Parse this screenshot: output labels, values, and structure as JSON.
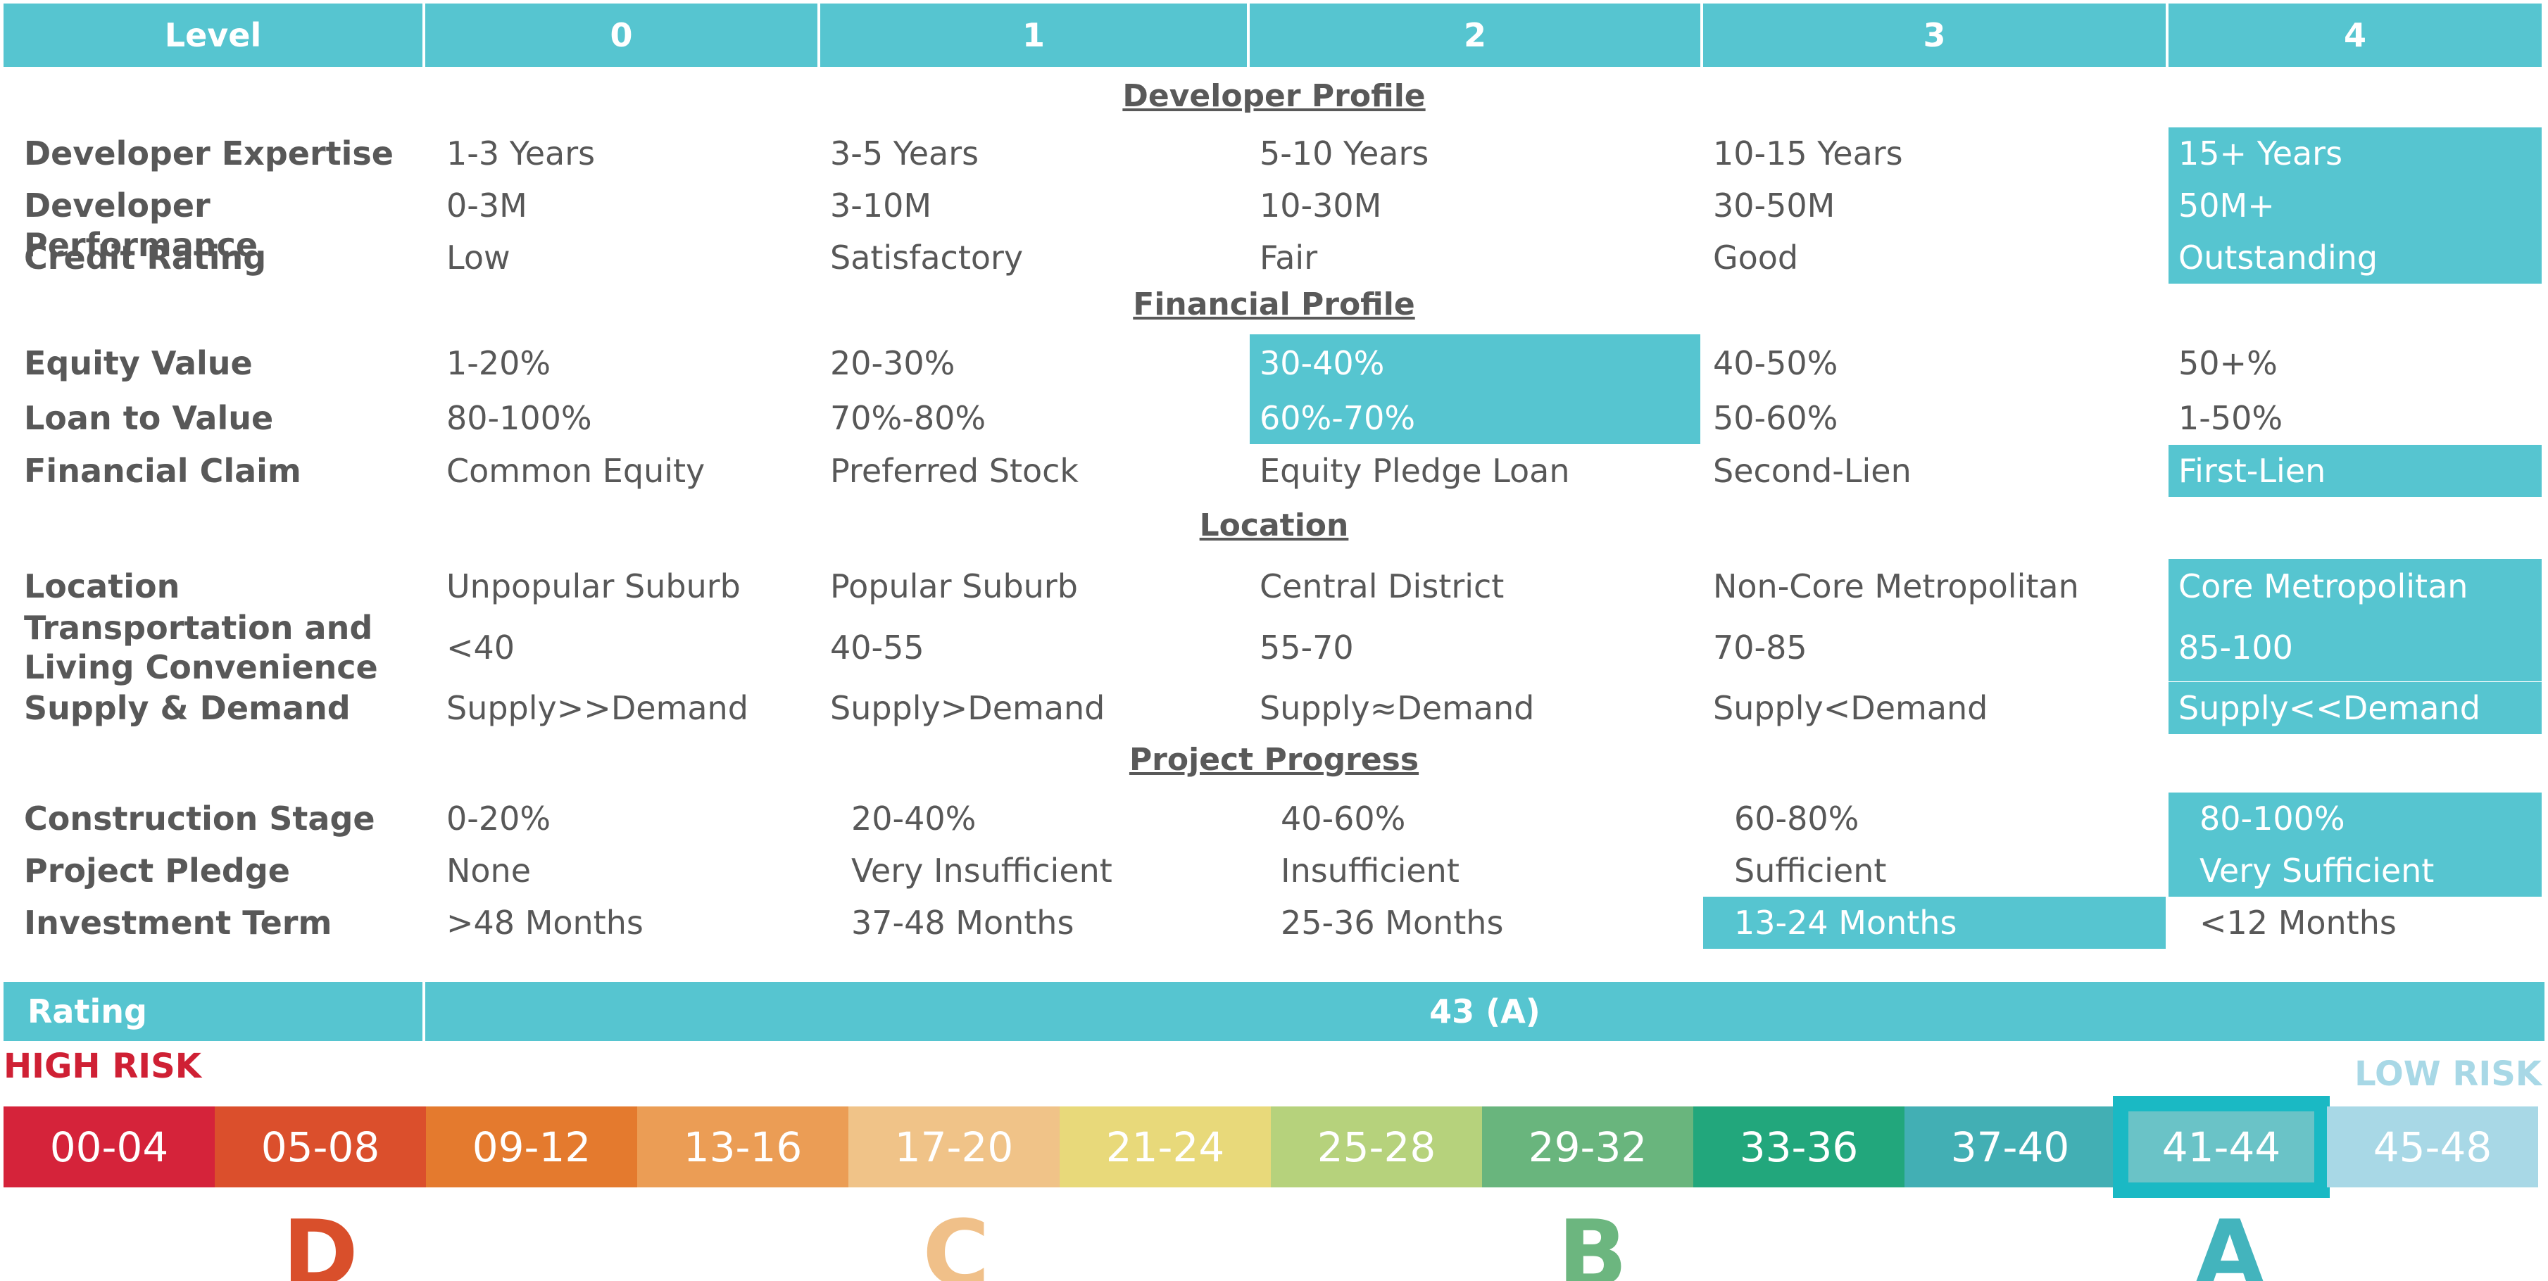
{
  "header": {
    "level_label": "Level",
    "levels": [
      "0",
      "1",
      "2",
      "3",
      "4"
    ]
  },
  "sections": [
    {
      "title": "Developer Profile",
      "rows": [
        {
          "label": "Developer Expertise",
          "values": [
            "1-3 Years",
            "3-5 Years",
            "5-10 Years",
            "10-15 Years",
            "15+ Years"
          ],
          "selected_level": 4
        },
        {
          "label": "Developer Performance",
          "values": [
            "0-3M",
            "3-10M",
            "10-30M",
            "30-50M",
            "50M+"
          ],
          "selected_level": 4
        },
        {
          "label": "Credit Rating",
          "values": [
            "Low",
            "Satisfactory",
            "Fair",
            "Good",
            "Outstanding"
          ],
          "selected_level": 4
        }
      ]
    },
    {
      "title": "Financial Profile",
      "rows": [
        {
          "label": "Equity Value",
          "values": [
            "1-20%",
            "20-30%",
            "30-40%",
            "40-50%",
            "50+%"
          ],
          "selected_level": 2
        },
        {
          "label": "Loan to Value",
          "values": [
            "80-100%",
            "70%-80%",
            "60%-70%",
            "50-60%",
            "1-50%"
          ],
          "selected_level": 2
        },
        {
          "label": "Financial Claim",
          "values": [
            "Common Equity",
            "Preferred Stock",
            "Equity Pledge Loan",
            "Second-Lien",
            "First-Lien"
          ],
          "selected_level": 4
        }
      ]
    },
    {
      "title": "Location",
      "rows": [
        {
          "label": "Location",
          "values": [
            "Unpopular Suburb",
            "Popular Suburb",
            "Central District",
            "Non-Core Metropolitan",
            "Core Metropolitan"
          ],
          "selected_level": 4
        },
        {
          "label": "Transportation and Living Convenience",
          "label_lines": [
            "Transportation and",
            "Living Convenience"
          ],
          "values": [
            "<40",
            "40-55",
            "55-70",
            "70-85",
            "85-100"
          ],
          "selected_level": 4
        },
        {
          "label": "Supply & Demand",
          "values": [
            "Supply>>Demand",
            "Supply>Demand",
            "Supply≈Demand",
            "Supply<Demand",
            "Supply<<Demand"
          ],
          "selected_level": 4
        }
      ]
    },
    {
      "title": "Project Progress",
      "rows": [
        {
          "label": "Construction Stage",
          "values": [
            "0-20%",
            "20-40%",
            "40-60%",
            "60-80%",
            "80-100%"
          ],
          "selected_level": 4
        },
        {
          "label": "Project Pledge",
          "values": [
            "None",
            "Very Insufficient",
            "Insufficient",
            "Sufficient",
            "Very Sufficient"
          ],
          "selected_level": 4
        },
        {
          "label": "Investment Term",
          "values": [
            ">48 Months",
            "37-48 Months",
            "25-36 Months",
            "13-24 Months",
            "<12 Months"
          ],
          "selected_level": 3
        }
      ]
    }
  ],
  "rating": {
    "label": "Rating",
    "value": "43 (A)"
  },
  "scale": {
    "high_risk_label": "HIGH RISK",
    "low_risk_label": "LOW RISK",
    "bands": [
      "00-04",
      "05-08",
      "09-12",
      "13-16",
      "17-20",
      "21-24",
      "25-28",
      "29-32",
      "33-36",
      "37-40",
      "41-44",
      "45-48"
    ],
    "band_colors": [
      "#d5233a",
      "#db4f2c",
      "#e47a2e",
      "#eb9d55",
      "#f0c388",
      "#e8d97a",
      "#b6d27c",
      "#69b57d",
      "#22a77c",
      "#42afb4",
      "#6ac3c7",
      "#a8d8e6"
    ],
    "selected_band": "41-44",
    "grades": [
      "D",
      "C",
      "B",
      "A"
    ],
    "grade_colors": [
      "#d94f2b",
      "#f0c089",
      "#6cb67f",
      "#43b4bd"
    ]
  },
  "colors": {
    "accent": "#56c5d0",
    "high_risk": "#cf2034",
    "low_risk": "#a8d8e6",
    "selected_band_border": "#1ab9c4"
  }
}
